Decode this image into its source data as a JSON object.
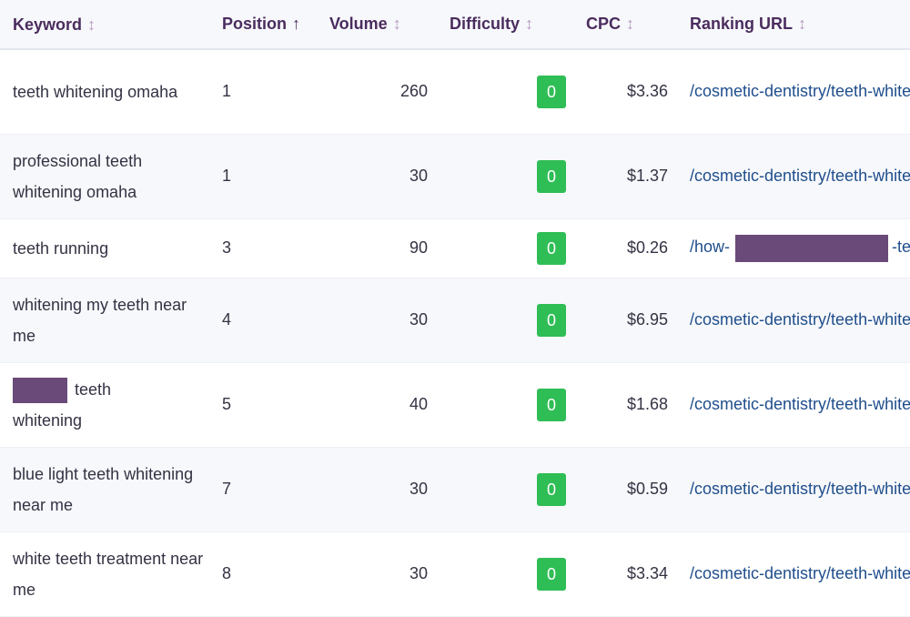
{
  "headers": {
    "keyword": "Keyword",
    "position": "Position",
    "volume": "Volume",
    "difficulty": "Difficulty",
    "cpc": "CPC",
    "url": "Ranking URL",
    "sort_inactive": "↕",
    "sort_active": "↑"
  },
  "colors": {
    "header_text": "#4a2c5e",
    "difficulty_badge": "#2fbd55",
    "link": "#1f4e8c",
    "redaction": "#6a4a78"
  },
  "rows": [
    {
      "keyword": "teeth whitening omaha",
      "position": "1",
      "volume": "260",
      "difficulty": "0",
      "cpc": "$3.36",
      "url": "/cosmetic-dentistry/teeth-whitening/"
    },
    {
      "keyword": "professional teeth whitening omaha",
      "position": "1",
      "volume": "30",
      "difficulty": "0",
      "cpc": "$1.37",
      "url": "/cosmetic-dentistry/teeth-whitening/"
    },
    {
      "keyword": "teeth running",
      "position": "3",
      "volume": "90",
      "difficulty": "0",
      "cpc": "$0.26",
      "url_prefix": "/how-",
      "url_suffix": "-teeth/"
    },
    {
      "keyword": "whitening my teeth near me",
      "position": "4",
      "volume": "30",
      "difficulty": "0",
      "cpc": "$6.95",
      "url": "/cosmetic-dentistry/teeth-whitening/"
    },
    {
      "keyword_suffix": "teeth",
      "keyword_line2": "whitening",
      "position": "5",
      "volume": "40",
      "difficulty": "0",
      "cpc": "$1.68",
      "url": "/cosmetic-dentistry/teeth-whitening/"
    },
    {
      "keyword": "blue light teeth whitening near me",
      "position": "7",
      "volume": "30",
      "difficulty": "0",
      "cpc": "$0.59",
      "url": "/cosmetic-dentistry/teeth-whitening/"
    },
    {
      "keyword": "white teeth treatment near me",
      "position": "8",
      "volume": "30",
      "difficulty": "0",
      "cpc": "$3.34",
      "url": "/cosmetic-dentistry/teeth-whitening/"
    }
  ]
}
